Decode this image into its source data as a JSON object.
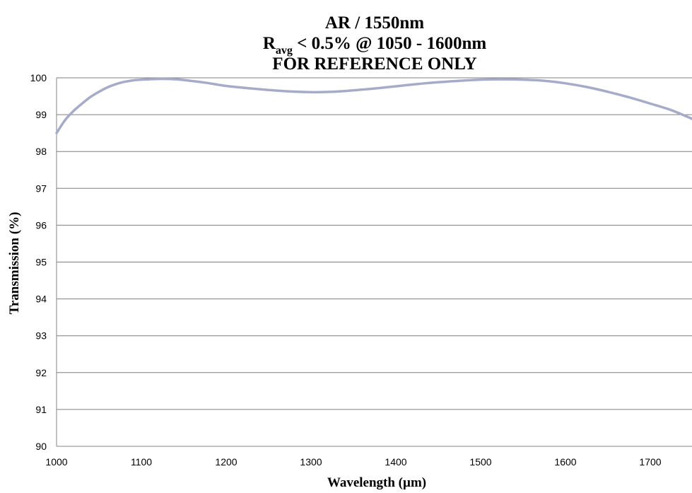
{
  "chart_data": {
    "type": "line",
    "title_line1": "AR / 1550nm",
    "title_line2_main": "R",
    "title_line2_sub": "avg",
    "title_line2_rest": " < 0.5% @ 1050 - 1600nm",
    "title_line3": "FOR REFERENCE ONLY",
    "xlabel": "Wavelength (µm)",
    "ylabel": "Transmission (%)",
    "xlim": [
      1000,
      1750
    ],
    "ylim": [
      90,
      100
    ],
    "xticks": [
      1000,
      1100,
      1200,
      1300,
      1400,
      1500,
      1600,
      1700
    ],
    "yticks": [
      90,
      91,
      92,
      93,
      94,
      95,
      96,
      97,
      98,
      99,
      100
    ],
    "grid": "horizontal",
    "series": [
      {
        "color": "#a6acc8",
        "x": [
          1000,
          1010,
          1020,
          1030,
          1040,
          1050,
          1060,
          1070,
          1080,
          1090,
          1100,
          1110,
          1120,
          1130,
          1140,
          1150,
          1175,
          1200,
          1225,
          1250,
          1275,
          1300,
          1325,
          1350,
          1375,
          1400,
          1425,
          1450,
          1475,
          1500,
          1525,
          1550,
          1575,
          1600,
          1625,
          1650,
          1675,
          1700,
          1725,
          1750
        ],
        "y": [
          98.5,
          98.85,
          99.1,
          99.3,
          99.48,
          99.62,
          99.74,
          99.83,
          99.89,
          99.93,
          99.95,
          99.96,
          99.97,
          99.97,
          99.96,
          99.94,
          99.87,
          99.78,
          99.72,
          99.67,
          99.63,
          99.61,
          99.62,
          99.66,
          99.71,
          99.77,
          99.83,
          99.88,
          99.92,
          99.95,
          99.96,
          99.95,
          99.92,
          99.85,
          99.75,
          99.62,
          99.47,
          99.3,
          99.12,
          98.88
        ]
      }
    ]
  },
  "colors": {
    "gridline": "#7f7f7f",
    "axis": "#868686",
    "series": "#a6acc8"
  }
}
